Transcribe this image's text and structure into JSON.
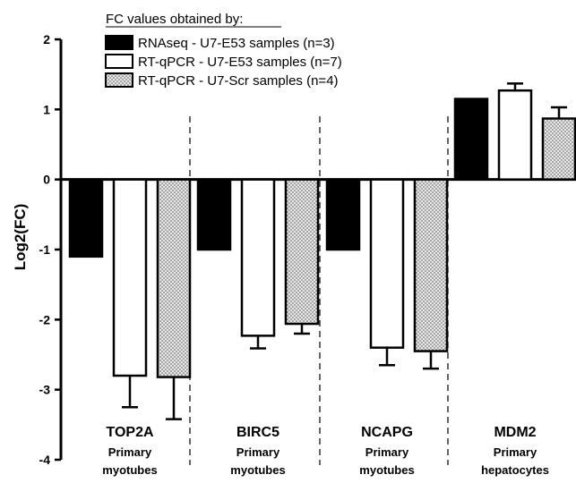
{
  "chart_data": {
    "type": "bar",
    "ylabel": "Log2(FC)",
    "ylim": [
      -4,
      2
    ],
    "yticks": [
      "-4",
      "-3",
      "-2",
      "-1",
      "0",
      "1",
      "2"
    ],
    "legend_title": "FC values obtained  by:",
    "legend_position": "top",
    "categories": [
      {
        "gene": "TOP2A",
        "cell_line1": "Primary",
        "cell_line2": "myotubes"
      },
      {
        "gene": "BIRC5",
        "cell_line1": "Primary",
        "cell_line2": "myotubes"
      },
      {
        "gene": "NCAPG",
        "cell_line1": "Primary",
        "cell_line2": "myotubes"
      },
      {
        "gene": "MDM2",
        "cell_line1": "Primary",
        "cell_line2": "hepatocytes"
      }
    ],
    "series": [
      {
        "name": "RNAseq - U7-E53 samples (n=3)",
        "fill": "solid",
        "values": [
          -1.1,
          -1.0,
          -1.0,
          1.15
        ],
        "errors": [
          null,
          null,
          null,
          null
        ]
      },
      {
        "name": "RT-qPCR - U7-E53 samples (n=7)",
        "fill": "white",
        "values": [
          -2.8,
          -2.23,
          -2.4,
          1.27
        ],
        "errors": [
          0.45,
          0.18,
          0.25,
          0.1
        ]
      },
      {
        "name": "RT-qPCR - U7-Scr samples (n=4)",
        "fill": "dotted",
        "values": [
          -2.82,
          -2.06,
          -2.45,
          0.87
        ],
        "errors": [
          0.6,
          0.14,
          0.25,
          0.16
        ]
      }
    ],
    "colors": {
      "solid": "#000000",
      "white": "#ffffff",
      "dotted_bg": "#e6e6e6"
    }
  }
}
